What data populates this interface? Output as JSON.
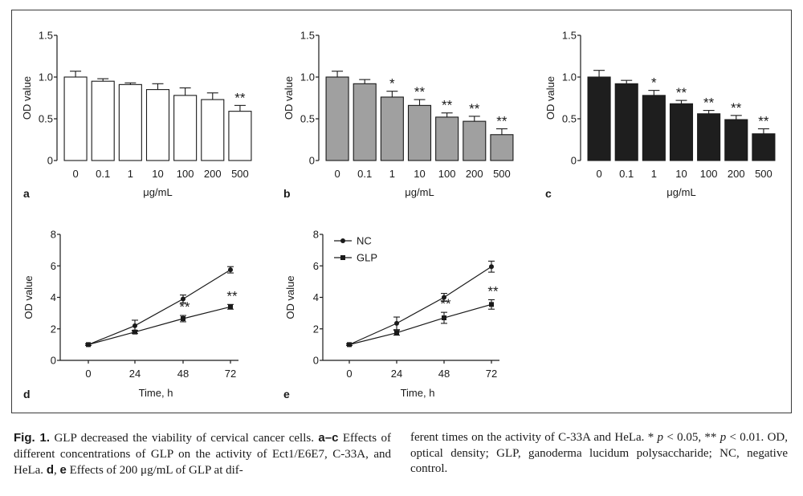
{
  "chart_data": [
    {
      "panel": "a",
      "type": "bar",
      "categories": [
        "0",
        "0.1",
        "1",
        "10",
        "100",
        "200",
        "500"
      ],
      "values": [
        1.0,
        0.95,
        0.91,
        0.85,
        0.78,
        0.73,
        0.59
      ],
      "errors": [
        0.07,
        0.03,
        0.02,
        0.07,
        0.09,
        0.08,
        0.07
      ],
      "significance": [
        "",
        "",
        "",
        "",
        "",
        "",
        "**"
      ],
      "bar_color": "#ffffff",
      "xlabel": "μg/mL",
      "ylabel": "OD value",
      "ylim": [
        0,
        1.5
      ],
      "yticks": [
        "0",
        "0.5",
        "1.0",
        "1.5"
      ]
    },
    {
      "panel": "b",
      "type": "bar",
      "categories": [
        "0",
        "0.1",
        "1",
        "10",
        "100",
        "200",
        "500"
      ],
      "values": [
        1.0,
        0.92,
        0.76,
        0.66,
        0.52,
        0.47,
        0.31
      ],
      "errors": [
        0.07,
        0.05,
        0.07,
        0.07,
        0.05,
        0.06,
        0.07
      ],
      "significance": [
        "",
        "",
        "*",
        "**",
        "**",
        "**",
        "**"
      ],
      "bar_color": "#a0a0a0",
      "xlabel": "μg/mL",
      "ylabel": "OD value",
      "ylim": [
        0,
        1.5
      ],
      "yticks": [
        "0",
        "0.5",
        "1.0",
        "1.5"
      ]
    },
    {
      "panel": "c",
      "type": "bar",
      "categories": [
        "0",
        "0.1",
        "1",
        "10",
        "100",
        "200",
        "500"
      ],
      "values": [
        1.0,
        0.92,
        0.78,
        0.68,
        0.56,
        0.49,
        0.32
      ],
      "errors": [
        0.08,
        0.04,
        0.06,
        0.04,
        0.04,
        0.05,
        0.06
      ],
      "significance": [
        "",
        "",
        "*",
        "**",
        "**",
        "**",
        "**"
      ],
      "bar_color": "#1e1e1e",
      "xlabel": "μg/mL",
      "ylabel": "OD value",
      "ylim": [
        0,
        1.5
      ],
      "yticks": [
        "0",
        "0.5",
        "1.0",
        "1.5"
      ]
    },
    {
      "panel": "d",
      "type": "line",
      "x": [
        0,
        24,
        48,
        72
      ],
      "xticks": [
        "0",
        "24",
        "48",
        "72"
      ],
      "series": [
        {
          "marker": "circle",
          "values": [
            1.0,
            2.2,
            3.9,
            5.75
          ],
          "errors": [
            0.05,
            0.35,
            0.25,
            0.2
          ]
        },
        {
          "marker": "square",
          "values": [
            1.0,
            1.8,
            2.65,
            3.4
          ],
          "errors": [
            0.05,
            0.1,
            0.2,
            0.15
          ]
        }
      ],
      "significance": [
        {
          "x": 48,
          "text": "**"
        },
        {
          "x": 72,
          "text": "**"
        }
      ],
      "xlabel": "Time, h",
      "ylabel": "OD value",
      "ylim": [
        0,
        8
      ],
      "yticks": [
        "0",
        "2",
        "4",
        "6",
        "8"
      ]
    },
    {
      "panel": "e",
      "type": "line",
      "x": [
        0,
        24,
        48,
        72
      ],
      "xticks": [
        "0",
        "24",
        "48",
        "72"
      ],
      "series": [
        {
          "name": "NC",
          "marker": "circle",
          "values": [
            1.0,
            2.35,
            4.0,
            5.95
          ],
          "errors": [
            0.05,
            0.4,
            0.25,
            0.35
          ]
        },
        {
          "name": "GLP",
          "marker": "square",
          "values": [
            1.0,
            1.75,
            2.7,
            3.55
          ],
          "errors": [
            0.05,
            0.15,
            0.35,
            0.3
          ]
        }
      ],
      "significance": [
        {
          "x": 48,
          "text": "**"
        },
        {
          "x": 72,
          "text": "**"
        }
      ],
      "legend": "top-left",
      "xlabel": "Time, h",
      "ylabel": "OD value",
      "ylim": [
        0,
        8
      ],
      "yticks": [
        "0",
        "2",
        "4",
        "6",
        "8"
      ]
    }
  ],
  "caption": {
    "left": {
      "fig_label": "Fig. 1.",
      "text_1": " GLP decreased the viability of cervical cancer cells. ",
      "bold_1": "a–c",
      "text_2": " Effects of different concentrations of GLP on the activity of Ect1/E6E7, C-33A, and HeLa. ",
      "bold_2": "d",
      "text_3": ", ",
      "bold_3": "e",
      "text_4": " Effects of 200 μg/mL of GLP at dif-"
    },
    "right": {
      "text_1": "ferent times on the activity of C-33A and HeLa. * ",
      "p_1": "p",
      "text_2": " < 0.05, ** ",
      "p_2": "p",
      "text_3": " < 0.01. OD, optical density; GLP, ganoderma lucidum polysaccharide; NC, negative control."
    }
  }
}
